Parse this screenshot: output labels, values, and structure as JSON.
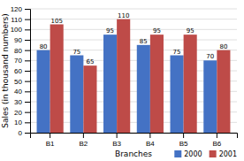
{
  "chart_data": {
    "type": "bar",
    "categories": [
      "B1",
      "B2",
      "B3",
      "B4",
      "B5",
      "B6"
    ],
    "series": [
      {
        "name": "2000",
        "color": "#4472C4",
        "values": [
          80,
          75,
          95,
          85,
          75,
          70
        ]
      },
      {
        "name": "2001",
        "color": "#BE4B48",
        "values": [
          105,
          65,
          110,
          95,
          95,
          80
        ]
      }
    ],
    "xlabel": "Branches",
    "ylabel": "Sales (in thousand numbers)",
    "ylim": [
      0,
      120
    ],
    "yticks": [
      0,
      10,
      20,
      30,
      40,
      50,
      60,
      70,
      80,
      90,
      100,
      110,
      120
    ],
    "grid": true,
    "legend": "lower right",
    "data_labels": true
  }
}
